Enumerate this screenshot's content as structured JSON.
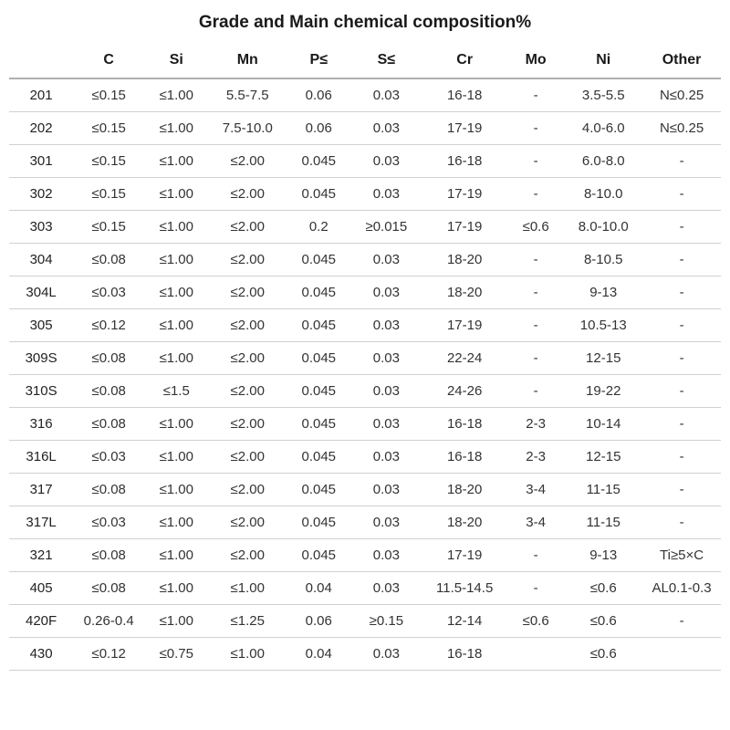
{
  "table": {
    "type": "table",
    "title": "Grade and Main chemical composition%",
    "background_color": "#ffffff",
    "text_color": "#333333",
    "border_color": "#d0d0d0",
    "header_border_color": "#b0b0b0",
    "title_fontsize": 19,
    "header_fontsize": 16,
    "cell_fontsize": 15,
    "columns": [
      "",
      "C",
      "Si",
      "Mn",
      "P≤",
      "S≤",
      "Cr",
      "Mo",
      "Ni",
      "Other"
    ],
    "column_widths_pct": [
      9,
      10,
      9,
      11,
      9,
      10,
      12,
      8,
      11,
      11
    ],
    "rows": [
      [
        "201",
        "≤0.15",
        "≤1.00",
        "5.5-7.5",
        "0.06",
        "0.03",
        "16-18",
        "-",
        "3.5-5.5",
        "N≤0.25"
      ],
      [
        "202",
        "≤0.15",
        "≤1.00",
        "7.5-10.0",
        "0.06",
        "0.03",
        "17-19",
        "-",
        "4.0-6.0",
        "N≤0.25"
      ],
      [
        "301",
        "≤0.15",
        "≤1.00",
        "≤2.00",
        "0.045",
        "0.03",
        "16-18",
        "-",
        "6.0-8.0",
        "-"
      ],
      [
        "302",
        "≤0.15",
        "≤1.00",
        "≤2.00",
        "0.045",
        "0.03",
        "17-19",
        "-",
        "8-10.0",
        "-"
      ],
      [
        "303",
        "≤0.15",
        "≤1.00",
        "≤2.00",
        "0.2",
        "≥0.015",
        "17-19",
        "≤0.6",
        "8.0-10.0",
        "-"
      ],
      [
        "304",
        "≤0.08",
        "≤1.00",
        "≤2.00",
        "0.045",
        "0.03",
        "18-20",
        "-",
        "8-10.5",
        "-"
      ],
      [
        "304L",
        "≤0.03",
        "≤1.00",
        "≤2.00",
        "0.045",
        "0.03",
        "18-20",
        "-",
        "9-13",
        "-"
      ],
      [
        "305",
        "≤0.12",
        "≤1.00",
        "≤2.00",
        "0.045",
        "0.03",
        "17-19",
        "-",
        "10.5-13",
        "-"
      ],
      [
        "309S",
        "≤0.08",
        "≤1.00",
        "≤2.00",
        "0.045",
        "0.03",
        "22-24",
        "-",
        "12-15",
        "-"
      ],
      [
        "310S",
        "≤0.08",
        "≤1.5",
        "≤2.00",
        "0.045",
        "0.03",
        "24-26",
        "-",
        "19-22",
        "-"
      ],
      [
        "316",
        "≤0.08",
        "≤1.00",
        "≤2.00",
        "0.045",
        "0.03",
        "16-18",
        "2-3",
        "10-14",
        "-"
      ],
      [
        "316L",
        "≤0.03",
        "≤1.00",
        "≤2.00",
        "0.045",
        "0.03",
        "16-18",
        "2-3",
        "12-15",
        "-"
      ],
      [
        "317",
        "≤0.08",
        "≤1.00",
        "≤2.00",
        "0.045",
        "0.03",
        "18-20",
        "3-4",
        "11-15",
        "-"
      ],
      [
        "317L",
        "≤0.03",
        "≤1.00",
        "≤2.00",
        "0.045",
        "0.03",
        "18-20",
        "3-4",
        "11-15",
        "-"
      ],
      [
        "321",
        "≤0.08",
        "≤1.00",
        "≤2.00",
        "0.045",
        "0.03",
        "17-19",
        "-",
        "9-13",
        "Ti≥5×C"
      ],
      [
        "405",
        "≤0.08",
        "≤1.00",
        "≤1.00",
        "0.04",
        "0.03",
        "11.5-14.5",
        "-",
        "≤0.6",
        "AL0.1-0.3"
      ],
      [
        "420F",
        "0.26-0.4",
        "≤1.00",
        "≤1.25",
        "0.06",
        "≥0.15",
        "12-14",
        "≤0.6",
        "≤0.6",
        "-"
      ],
      [
        "430",
        "≤0.12",
        "≤0.75",
        "≤1.00",
        "0.04",
        "0.03",
        "16-18",
        "",
        "≤0.6",
        ""
      ]
    ]
  }
}
